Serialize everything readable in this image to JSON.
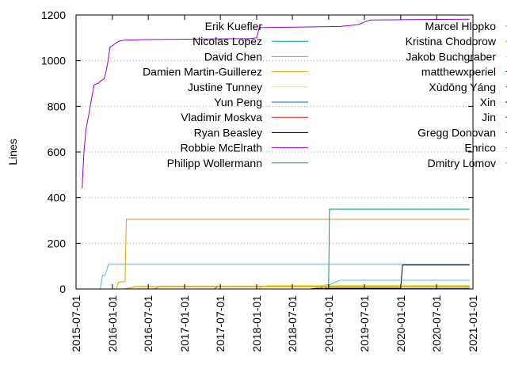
{
  "chart_data": {
    "type": "line",
    "title": "",
    "xlabel": "",
    "ylabel": "Lines",
    "ylim": [
      0,
      1200
    ],
    "xlim": [
      "2015-07-01",
      "2021-01-01"
    ],
    "x_ticks": [
      "2015-07-01",
      "2016-01-01",
      "2016-07-01",
      "2017-01-01",
      "2017-07-01",
      "2018-01-01",
      "2018-07-01",
      "2019-01-01",
      "2019-07-01",
      "2020-01-01",
      "2020-07-01",
      "2021-01-01"
    ],
    "y_ticks": [
      0,
      200,
      400,
      600,
      800,
      1000,
      1200
    ],
    "grid": "horizontal dashed at major y ticks",
    "legend": "top, two columns",
    "series": [
      {
        "name": "Erik Kuefler",
        "color": "#ffffff",
        "points": [
          [
            "2015-09-01",
            0
          ],
          [
            "2020-12-15",
            0
          ]
        ]
      },
      {
        "name": "Nicolas Lopez",
        "color": "#009e73",
        "points": [
          [
            "2015-10-01",
            0
          ],
          [
            "2020-12-15",
            0
          ]
        ]
      },
      {
        "name": "David Chen",
        "color": "#56b4e9",
        "points": [
          [
            "2015-11-01",
            0
          ],
          [
            "2015-11-12",
            60
          ],
          [
            "2015-11-25",
            60
          ],
          [
            "2015-12-01",
            75
          ],
          [
            "2015-12-12",
            108
          ],
          [
            "2020-12-15",
            108
          ]
        ]
      },
      {
        "name": "Damien Martin-Guillerez",
        "color": "#e69f00",
        "points": [
          [
            "2016-01-20",
            0
          ],
          [
            "2016-02-01",
            30
          ],
          [
            "2016-03-05",
            32
          ],
          [
            "2016-03-12",
            305
          ],
          [
            "2020-12-15",
            305
          ]
        ]
      },
      {
        "name": "Justine Tunney",
        "color": "#f0e442",
        "points": [
          [
            "2016-04-01",
            0
          ],
          [
            "2016-04-20",
            12
          ],
          [
            "2020-12-15",
            14
          ]
        ]
      },
      {
        "name": "Yun Peng",
        "color": "#0072b2",
        "points": [
          [
            "2019-01-01",
            0
          ],
          [
            "2019-02-01",
            2
          ],
          [
            "2020-12-15",
            3
          ]
        ]
      },
      {
        "name": "Vladimir Moskva",
        "color": "#e51e10",
        "points": [
          [
            "2017-06-01",
            0
          ],
          [
            "2017-06-20",
            12
          ],
          [
            "2018-01-01",
            12
          ],
          [
            "2018-02-01",
            12
          ]
        ]
      },
      {
        "name": "Ryan Beasley",
        "color": "#000000",
        "points": [
          [
            "2018-10-01",
            0
          ],
          [
            "2018-11-01",
            3
          ],
          [
            "2020-01-01",
            3
          ],
          [
            "2020-01-10",
            105
          ],
          [
            "2020-12-15",
            105
          ]
        ]
      },
      {
        "name": "Robbie McElrath",
        "color": "#9400d3",
        "points": [
          [
            "2015-08-01",
            440
          ],
          [
            "2015-08-05",
            520
          ],
          [
            "2015-08-10",
            600
          ],
          [
            "2015-08-20",
            700
          ],
          [
            "2015-09-01",
            750
          ],
          [
            "2015-09-15",
            820
          ],
          [
            "2015-10-01",
            895
          ],
          [
            "2015-10-20",
            900
          ],
          [
            "2015-11-01",
            910
          ],
          [
            "2015-11-20",
            920
          ],
          [
            "2015-12-01",
            955
          ],
          [
            "2015-12-10",
            1000
          ],
          [
            "2015-12-20",
            1060
          ],
          [
            "2016-01-01",
            1065
          ],
          [
            "2016-01-15",
            1075
          ],
          [
            "2016-02-01",
            1085
          ],
          [
            "2016-03-01",
            1090
          ],
          [
            "2016-06-01",
            1092
          ],
          [
            "2017-04-01",
            1095
          ],
          [
            "2017-12-01",
            1097
          ],
          [
            "2018-01-01",
            1100
          ],
          [
            "2018-01-15",
            1145
          ],
          [
            "2018-10-01",
            1148
          ],
          [
            "2019-03-01",
            1150
          ],
          [
            "2019-06-01",
            1158
          ],
          [
            "2019-07-01",
            1170
          ],
          [
            "2019-08-01",
            1178
          ],
          [
            "2020-02-01",
            1180
          ],
          [
            "2020-12-15",
            1182
          ]
        ]
      },
      {
        "name": "Philipp Wollermann",
        "color": "#009e73",
        "points": [
          [
            "2018-11-20",
            0
          ],
          [
            "2018-12-01",
            15
          ],
          [
            "2019-01-01",
            18
          ],
          [
            "2019-01-05",
            350
          ],
          [
            "2020-12-15",
            350
          ]
        ]
      },
      {
        "name": "Marcel Hlopko",
        "color": "#56b4e9",
        "points": [
          [
            "2018-12-01",
            0
          ],
          [
            "2019-02-01",
            30
          ],
          [
            "2019-03-01",
            38
          ],
          [
            "2020-12-15",
            38
          ]
        ]
      },
      {
        "name": "Kristina Chodorow",
        "color": "#e69f00",
        "points": [
          [
            "2016-03-01",
            0
          ],
          [
            "2016-05-01",
            10
          ],
          [
            "2020-12-15",
            10
          ]
        ]
      },
      {
        "name": "Jakob Buchgraber",
        "color": "#f0e442",
        "points": [
          [
            "2018-01-01",
            0
          ],
          [
            "2018-03-01",
            16
          ],
          [
            "2020-12-15",
            16
          ]
        ]
      },
      {
        "name": "matthewxperiel",
        "color": "#0072b2",
        "points": [
          [
            "2019-10-01",
            0
          ],
          [
            "2020-12-15",
            0
          ]
        ]
      },
      {
        "name": "Xùdōng Yáng",
        "color": "#e51e10",
        "points": [
          [
            "2019-12-01",
            0
          ],
          [
            "2020-12-15",
            0
          ]
        ]
      },
      {
        "name": "Xin",
        "color": "#000000",
        "points": [
          [
            "2020-01-01",
            0
          ],
          [
            "2020-12-15",
            0
          ]
        ]
      },
      {
        "name": "Jin",
        "color": "#9400d3",
        "points": [
          [
            "2020-03-01",
            0
          ],
          [
            "2020-12-15",
            0
          ]
        ]
      },
      {
        "name": "Gregg Donovan",
        "color": "#009e73",
        "points": [
          [
            "2020-05-01",
            0
          ],
          [
            "2020-12-15",
            0
          ]
        ]
      },
      {
        "name": "Enrico",
        "color": "#56b4e9",
        "points": [
          [
            "2020-07-01",
            0
          ],
          [
            "2020-12-15",
            0
          ]
        ]
      },
      {
        "name": "Dmitry Lomov",
        "color": "#e69f00",
        "points": [
          [
            "2016-08-01",
            0
          ],
          [
            "2016-09-01",
            12
          ],
          [
            "2020-12-15",
            12
          ]
        ]
      }
    ]
  }
}
